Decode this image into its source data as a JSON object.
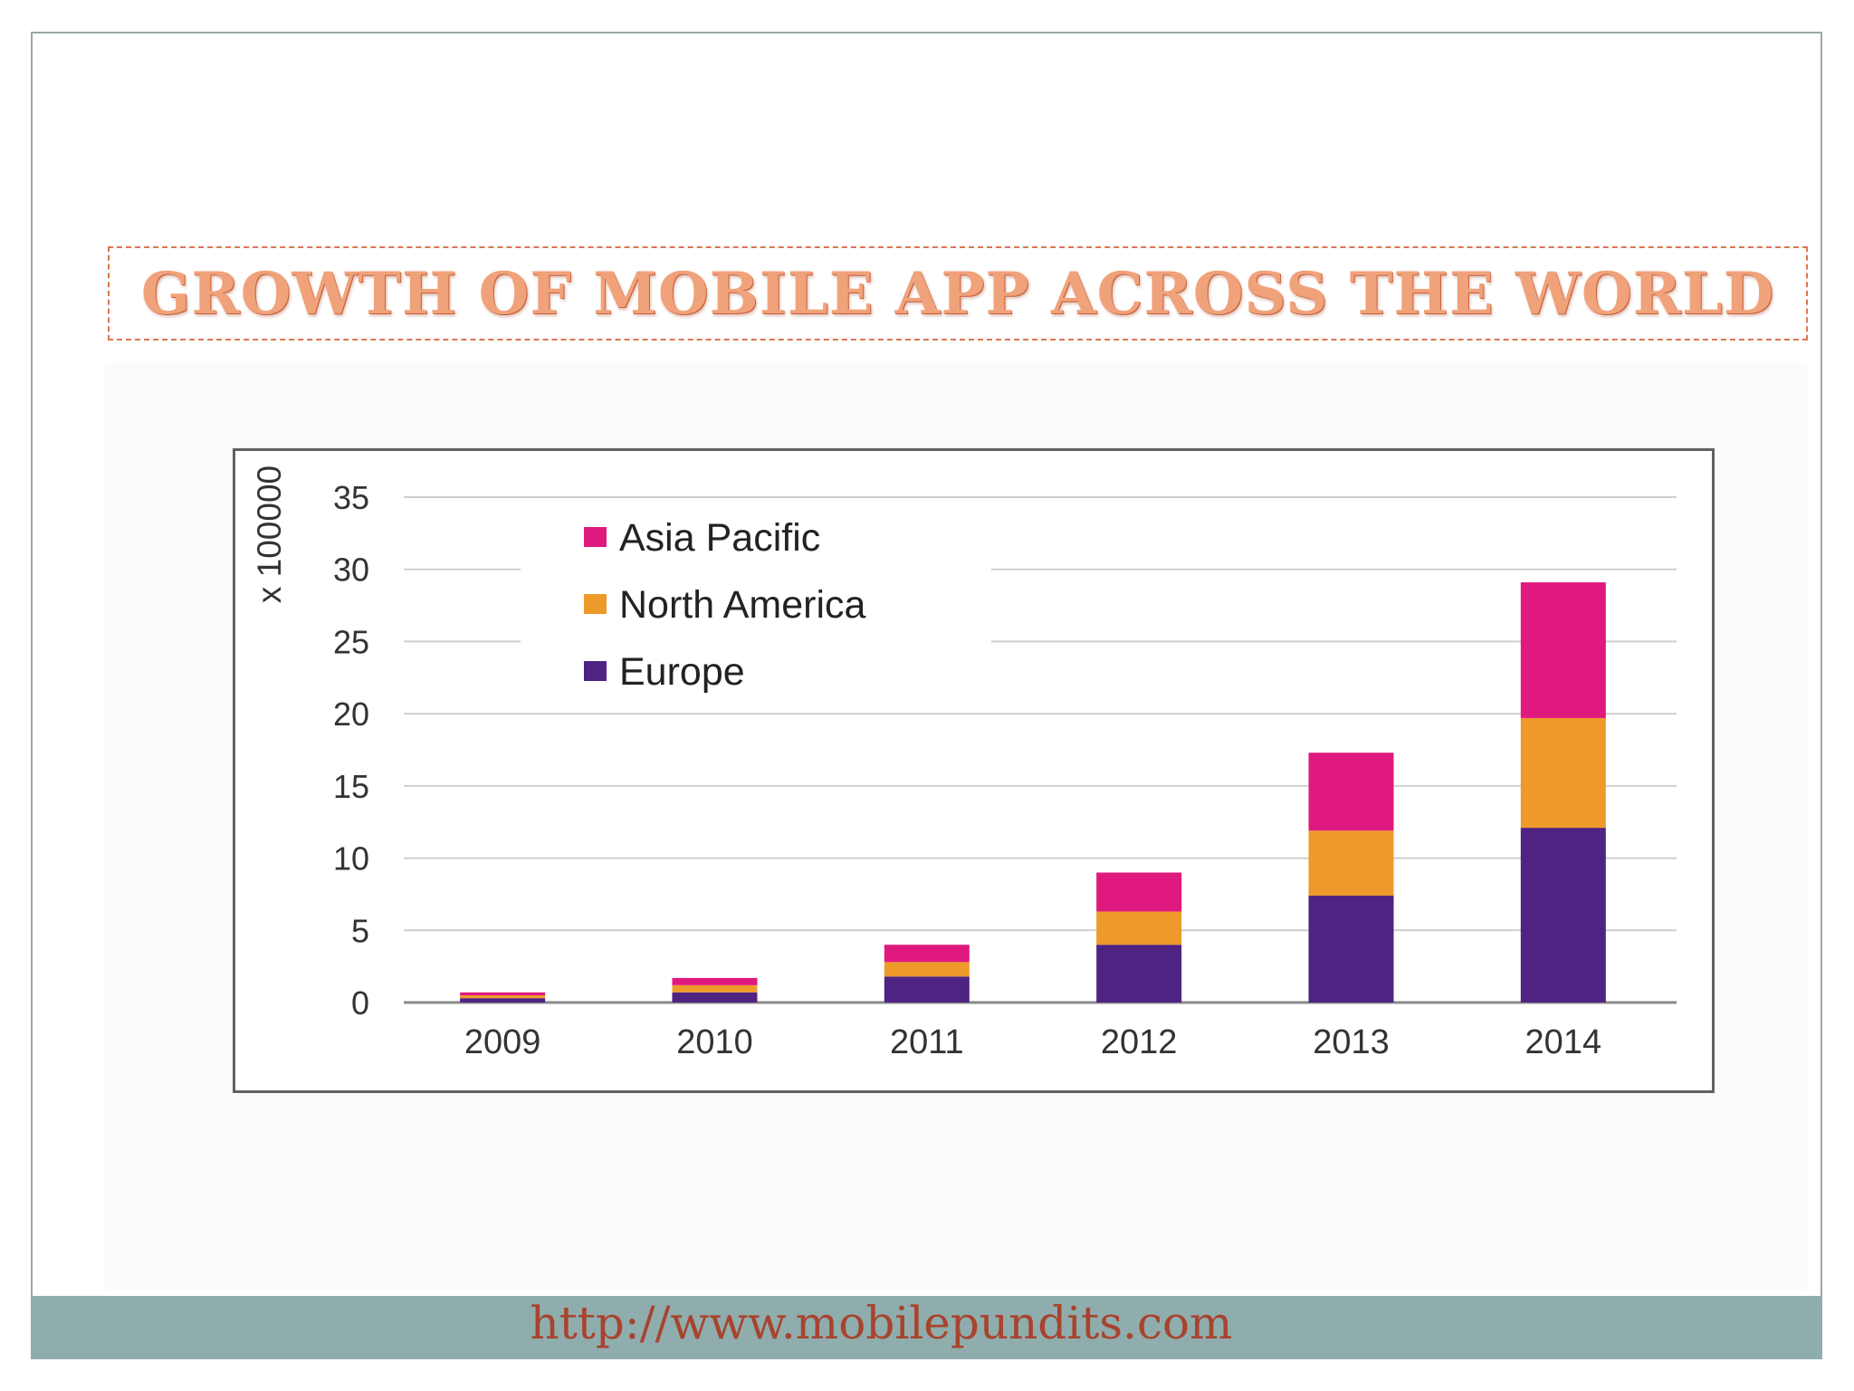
{
  "slide": {
    "title": "GROWTH OF MOBILE APP ACROSS THE WORLD",
    "footer_link": "http://www.mobilepundits.com"
  },
  "colors": {
    "asia_pacific": "#e0197e",
    "north_america": "#ee9a2a",
    "europe": "#4e2382",
    "grid": "#cfcfcf",
    "axis_text": "#333333"
  },
  "chart_data": {
    "type": "bar",
    "stacked": true,
    "title": "",
    "xlabel": "",
    "ylabel": "x 100000",
    "ylim": [
      0,
      35
    ],
    "yticks": [
      0,
      5,
      10,
      15,
      20,
      25,
      30,
      35
    ],
    "grid": true,
    "legend_position": "top-left",
    "categories": [
      "2009",
      "2010",
      "2011",
      "2012",
      "2013",
      "2014"
    ],
    "series": [
      {
        "name": "Europe",
        "color": "#4e2382",
        "values": [
          0.3,
          0.7,
          1.8,
          4.0,
          7.4,
          12.1
        ]
      },
      {
        "name": "North America",
        "color": "#ee9a2a",
        "values": [
          0.2,
          0.5,
          1.0,
          2.3,
          4.5,
          7.6
        ]
      },
      {
        "name": "Asia Pacific",
        "color": "#e0197e",
        "values": [
          0.2,
          0.5,
          1.2,
          2.7,
          5.4,
          9.4
        ]
      }
    ],
    "legend": [
      "Asia Pacific",
      "North America",
      "Europe"
    ]
  }
}
